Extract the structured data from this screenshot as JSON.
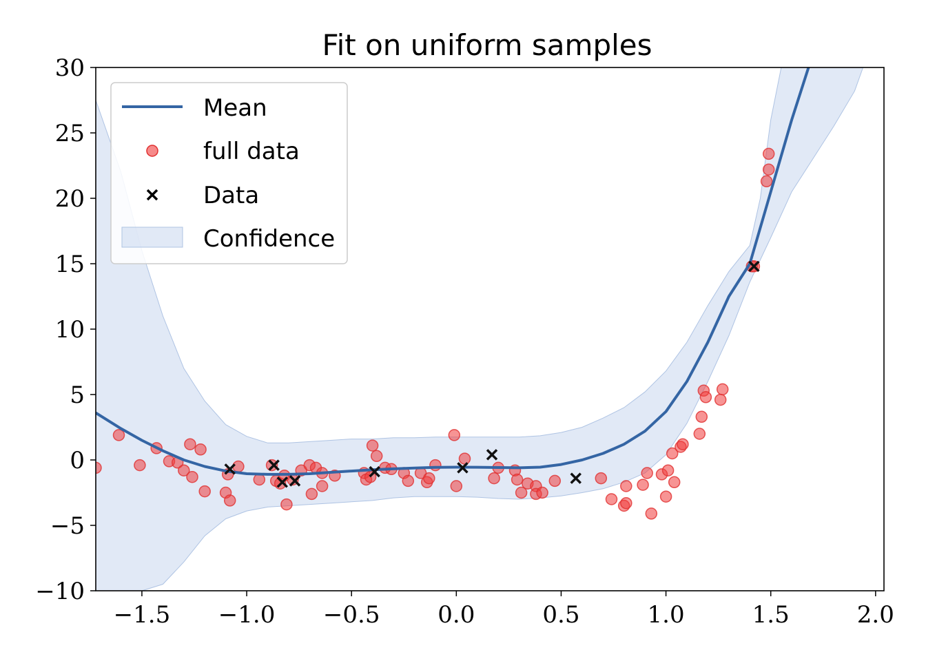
{
  "chart_data": {
    "type": "scatter",
    "title": "Fit on uniform samples",
    "xlabel": "",
    "ylabel": "",
    "xlim": [
      -1.72,
      2.04
    ],
    "ylim": [
      -10,
      30
    ],
    "xticks": [
      -1.5,
      -1.0,
      -0.5,
      0.0,
      0.5,
      1.0,
      1.5,
      2.0
    ],
    "xtick_labels": [
      "−1.5",
      "−1.0",
      "−0.5",
      "0.0",
      "0.5",
      "1.0",
      "1.5",
      "2.0"
    ],
    "yticks": [
      -10,
      -5,
      0,
      5,
      10,
      15,
      20,
      25,
      30
    ],
    "ytick_labels": [
      "−10",
      "−5",
      "0",
      "5",
      "10",
      "15",
      "20",
      "25",
      "30"
    ],
    "grid": false,
    "legend_position": "top-left",
    "colors": {
      "mean": "#3465a4",
      "full_data": "#f03c3c",
      "data": "#111111",
      "confidence": "#c8d7ee"
    },
    "series": [
      {
        "name": "Mean",
        "kind": "line",
        "points": [
          [
            -1.72,
            3.6
          ],
          [
            -1.6,
            2.4
          ],
          [
            -1.5,
            1.5
          ],
          [
            -1.4,
            0.7
          ],
          [
            -1.3,
            0.0
          ],
          [
            -1.2,
            -0.5
          ],
          [
            -1.1,
            -0.85
          ],
          [
            -1.0,
            -1.05
          ],
          [
            -0.9,
            -1.1
          ],
          [
            -0.8,
            -1.1
          ],
          [
            -0.7,
            -1.05
          ],
          [
            -0.6,
            -0.95
          ],
          [
            -0.5,
            -0.85
          ],
          [
            -0.4,
            -0.75
          ],
          [
            -0.3,
            -0.68
          ],
          [
            -0.2,
            -0.62
          ],
          [
            -0.1,
            -0.57
          ],
          [
            0.0,
            -0.55
          ],
          [
            0.1,
            -0.56
          ],
          [
            0.2,
            -0.58
          ],
          [
            0.3,
            -0.6
          ],
          [
            0.4,
            -0.55
          ],
          [
            0.5,
            -0.35
          ],
          [
            0.6,
            0.0
          ],
          [
            0.7,
            0.5
          ],
          [
            0.8,
            1.2
          ],
          [
            0.9,
            2.2
          ],
          [
            1.0,
            3.7
          ],
          [
            1.1,
            6.0
          ],
          [
            1.2,
            9.0
          ],
          [
            1.3,
            12.5
          ],
          [
            1.4,
            15.0
          ],
          [
            1.5,
            20.5
          ],
          [
            1.6,
            26.0
          ],
          [
            1.68,
            30.0
          ]
        ]
      },
      {
        "name": "full data",
        "kind": "scatter",
        "points": [
          [
            -1.72,
            -0.6
          ],
          [
            -1.61,
            1.9
          ],
          [
            -1.51,
            -0.4
          ],
          [
            -1.43,
            0.9
          ],
          [
            -1.37,
            -0.1
          ],
          [
            -1.33,
            -0.2
          ],
          [
            -1.3,
            -0.8
          ],
          [
            -1.27,
            1.2
          ],
          [
            -1.26,
            -1.3
          ],
          [
            -1.22,
            0.8
          ],
          [
            -1.2,
            -2.4
          ],
          [
            -1.1,
            -2.5
          ],
          [
            -1.09,
            -1.1
          ],
          [
            -1.08,
            -3.1
          ],
          [
            -1.04,
            -0.5
          ],
          [
            -0.94,
            -1.5
          ],
          [
            -0.88,
            -0.4
          ],
          [
            -0.86,
            -1.6
          ],
          [
            -0.84,
            -1.8
          ],
          [
            -0.82,
            -1.2
          ],
          [
            -0.81,
            -3.4
          ],
          [
            -0.78,
            -1.5
          ],
          [
            -0.74,
            -0.8
          ],
          [
            -0.7,
            -0.4
          ],
          [
            -0.69,
            -2.6
          ],
          [
            -0.67,
            -0.6
          ],
          [
            -0.64,
            -1.0
          ],
          [
            -0.64,
            -2.0
          ],
          [
            -0.58,
            -1.2
          ],
          [
            -0.44,
            -1.0
          ],
          [
            -0.43,
            -1.5
          ],
          [
            -0.41,
            -1.3
          ],
          [
            -0.4,
            1.1
          ],
          [
            -0.38,
            0.3
          ],
          [
            -0.34,
            -0.6
          ],
          [
            -0.31,
            -0.7
          ],
          [
            -0.25,
            -1.0
          ],
          [
            -0.23,
            -1.6
          ],
          [
            -0.17,
            -1.0
          ],
          [
            -0.14,
            -1.7
          ],
          [
            -0.13,
            -1.4
          ],
          [
            -0.1,
            -0.4
          ],
          [
            -0.01,
            1.9
          ],
          [
            0.0,
            -2.0
          ],
          [
            0.04,
            0.1
          ],
          [
            0.18,
            -1.4
          ],
          [
            0.2,
            -0.6
          ],
          [
            0.28,
            -0.8
          ],
          [
            0.29,
            -1.5
          ],
          [
            0.31,
            -2.5
          ],
          [
            0.34,
            -1.8
          ],
          [
            0.38,
            -2.0
          ],
          [
            0.38,
            -2.6
          ],
          [
            0.41,
            -2.5
          ],
          [
            0.47,
            -1.6
          ],
          [
            0.69,
            -1.4
          ],
          [
            0.74,
            -3.0
          ],
          [
            0.8,
            -3.5
          ],
          [
            0.81,
            -3.3
          ],
          [
            0.81,
            -2.0
          ],
          [
            0.89,
            -1.9
          ],
          [
            0.91,
            -1.0
          ],
          [
            0.93,
            -4.1
          ],
          [
            0.98,
            -1.1
          ],
          [
            1.0,
            -2.8
          ],
          [
            1.01,
            -0.8
          ],
          [
            1.03,
            0.5
          ],
          [
            1.04,
            -1.7
          ],
          [
            1.07,
            1.0
          ],
          [
            1.08,
            1.2
          ],
          [
            1.16,
            2.0
          ],
          [
            1.17,
            3.3
          ],
          [
            1.18,
            5.3
          ],
          [
            1.19,
            4.8
          ],
          [
            1.26,
            4.6
          ],
          [
            1.27,
            5.4
          ],
          [
            1.41,
            14.8
          ],
          [
            1.42,
            14.8
          ],
          [
            1.48,
            21.3
          ],
          [
            1.49,
            22.2
          ],
          [
            1.49,
            23.4
          ]
        ]
      },
      {
        "name": "Data",
        "kind": "scatter",
        "marker": "x",
        "points": [
          [
            -1.08,
            -0.7
          ],
          [
            -0.87,
            -0.4
          ],
          [
            -0.83,
            -1.7
          ],
          [
            -0.77,
            -1.6
          ],
          [
            -0.39,
            -0.9
          ],
          [
            0.03,
            -0.6
          ],
          [
            0.17,
            0.4
          ],
          [
            0.57,
            -1.4
          ],
          [
            1.42,
            14.8
          ]
        ]
      },
      {
        "name": "Confidence",
        "kind": "band",
        "upper": [
          [
            -1.72,
            27.5
          ],
          [
            -1.6,
            22.0
          ],
          [
            -1.5,
            16.0
          ],
          [
            -1.4,
            11.0
          ],
          [
            -1.3,
            7.0
          ],
          [
            -1.2,
            4.5
          ],
          [
            -1.1,
            2.7
          ],
          [
            -1.0,
            1.8
          ],
          [
            -0.9,
            1.3
          ],
          [
            -0.8,
            1.3
          ],
          [
            -0.7,
            1.4
          ],
          [
            -0.6,
            1.5
          ],
          [
            -0.5,
            1.6
          ],
          [
            -0.4,
            1.6
          ],
          [
            -0.3,
            1.7
          ],
          [
            -0.2,
            1.7
          ],
          [
            -0.1,
            1.75
          ],
          [
            0.0,
            1.75
          ],
          [
            0.1,
            1.75
          ],
          [
            0.2,
            1.75
          ],
          [
            0.3,
            1.75
          ],
          [
            0.4,
            1.85
          ],
          [
            0.5,
            2.1
          ],
          [
            0.6,
            2.5
          ],
          [
            0.7,
            3.2
          ],
          [
            0.8,
            4.0
          ],
          [
            0.9,
            5.2
          ],
          [
            1.0,
            6.8
          ],
          [
            1.1,
            9.0
          ],
          [
            1.2,
            11.8
          ],
          [
            1.3,
            14.4
          ],
          [
            1.4,
            16.4
          ],
          [
            1.45,
            20.0
          ],
          [
            1.5,
            26.0
          ],
          [
            1.55,
            30.0
          ]
        ],
        "lower": [
          [
            -1.5,
            -10.0
          ],
          [
            -1.4,
            -9.5
          ],
          [
            -1.3,
            -7.8
          ],
          [
            -1.2,
            -5.8
          ],
          [
            -1.1,
            -4.5
          ],
          [
            -1.0,
            -3.9
          ],
          [
            -0.9,
            -3.6
          ],
          [
            -0.8,
            -3.5
          ],
          [
            -0.7,
            -3.4
          ],
          [
            -0.6,
            -3.3
          ],
          [
            -0.5,
            -3.2
          ],
          [
            -0.4,
            -3.1
          ],
          [
            -0.3,
            -2.9
          ],
          [
            -0.2,
            -2.8
          ],
          [
            -0.1,
            -2.8
          ],
          [
            0.0,
            -2.8
          ],
          [
            0.1,
            -2.85
          ],
          [
            0.2,
            -2.95
          ],
          [
            0.3,
            -3.0
          ],
          [
            0.4,
            -2.9
          ],
          [
            0.5,
            -2.75
          ],
          [
            0.6,
            -2.5
          ],
          [
            0.7,
            -2.2
          ],
          [
            0.8,
            -1.7
          ],
          [
            0.9,
            -1.0
          ],
          [
            1.0,
            0.4
          ],
          [
            1.1,
            2.8
          ],
          [
            1.2,
            6.0
          ],
          [
            1.3,
            9.5
          ],
          [
            1.4,
            13.6
          ],
          [
            1.5,
            17.0
          ],
          [
            1.6,
            20.5
          ],
          [
            1.7,
            23.0
          ],
          [
            1.8,
            25.5
          ],
          [
            1.9,
            28.2
          ],
          [
            1.94,
            30.0
          ]
        ]
      }
    ]
  }
}
